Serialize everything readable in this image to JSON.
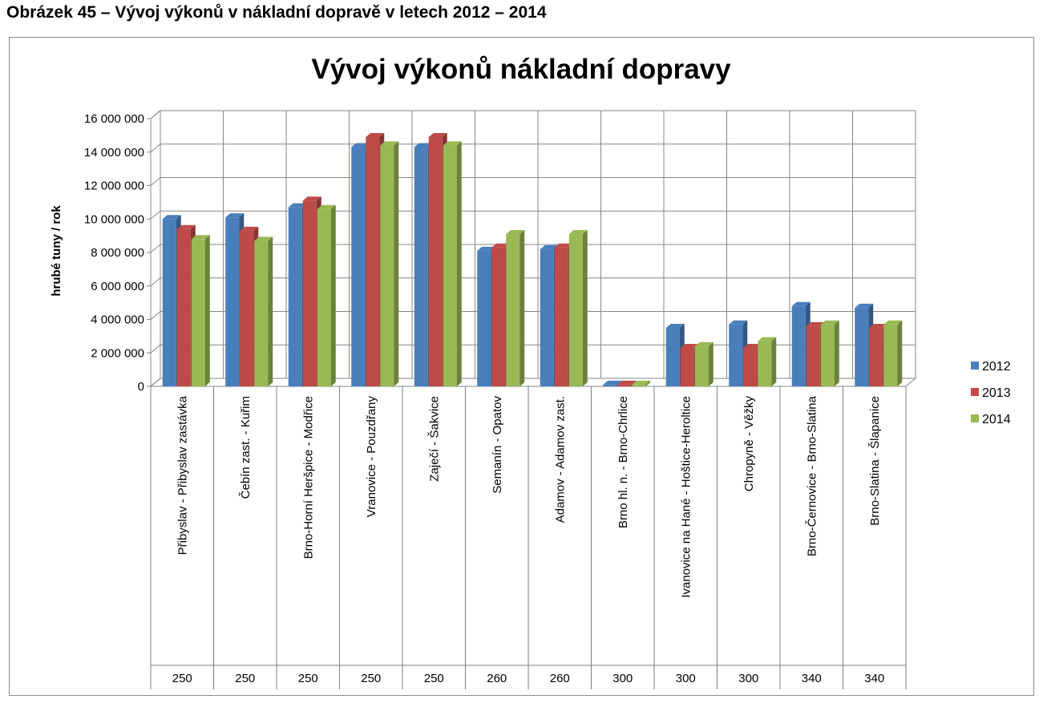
{
  "caption": "Obrázek 45 – Vývoj výkonů v nákladní dopravě v letech 2012 – 2014",
  "colors": {
    "s2012": "#4a7ebb",
    "s2013": "#be4b48",
    "s2014": "#98b954",
    "grid": "#868686",
    "wall": "#ffffff"
  },
  "chart_data": {
    "type": "bar",
    "title": "Vývoj výkonů nákladní dopravy",
    "ylabel": "hrubé tuny / rok",
    "xlabel": "",
    "ylim": [
      0,
      16000000
    ],
    "yticks": [
      0,
      2000000,
      4000000,
      6000000,
      8000000,
      10000000,
      12000000,
      14000000,
      16000000
    ],
    "ytick_labels": [
      "0",
      "2 000 000",
      "4 000 000",
      "6 000 000",
      "8 000 000",
      "10 000 000",
      "12 000 000",
      "14 000 000",
      "16 000 000"
    ],
    "grid": true,
    "legend_position": "right",
    "categories": [
      "Přibyslav - Přibyslav zastávka",
      "Čebín zast. - Kuřim",
      "Brno-Horní Heršpice - Modřice",
      "Vranovice - Pouzdřany",
      "Zaječí - Šakvice",
      "Semanín - Opatov",
      "Adamov - Adamov zast.",
      "Brno hl. n. - Brno-Chrlice",
      "Ivanovice na Hané - Hoštice-Heroltice",
      "Chropyně - Věžky",
      "Brno-Černovice - Brno-Slatina",
      "Brno-Slatina - Šlapanice"
    ],
    "category_codes": [
      "250",
      "250",
      "250",
      "250",
      "250",
      "260",
      "260",
      "300",
      "300",
      "300",
      "340",
      "340"
    ],
    "series": [
      {
        "name": "2012",
        "values": [
          10000000,
          10100000,
          10700000,
          14300000,
          14300000,
          8100000,
          8200000,
          100000,
          3500000,
          3700000,
          4800000,
          4700000
        ]
      },
      {
        "name": "2013",
        "values": [
          9400000,
          9300000,
          11100000,
          14900000,
          14900000,
          8300000,
          8300000,
          100000,
          2300000,
          2300000,
          3600000,
          3500000
        ]
      },
      {
        "name": "2014",
        "values": [
          8800000,
          8700000,
          10600000,
          14400000,
          14400000,
          9100000,
          9100000,
          100000,
          2400000,
          2700000,
          3700000,
          3700000
        ]
      }
    ]
  }
}
